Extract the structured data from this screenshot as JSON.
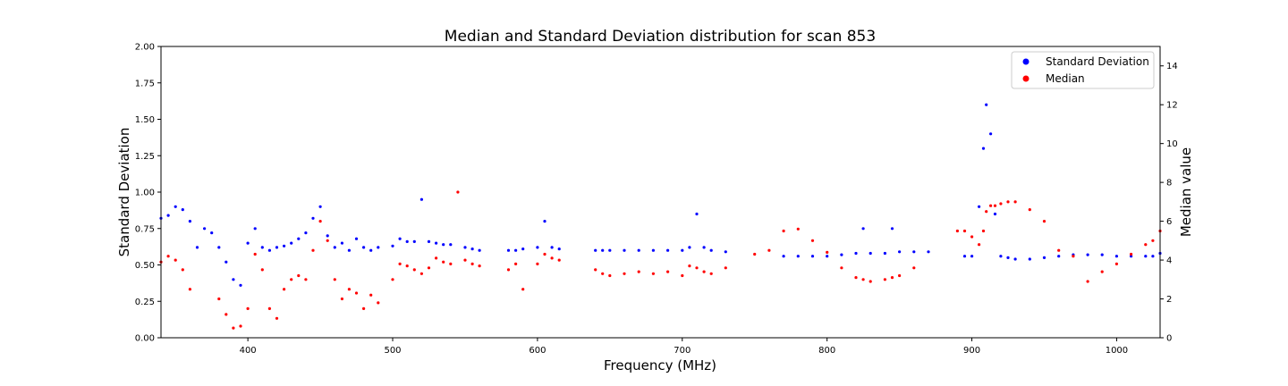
{
  "chart_data": {
    "type": "scatter",
    "title": "Median and Standard Deviation distribution for scan 853",
    "xlabel": "Frequency (MHz)",
    "ylabel_left": "Standard Deviation",
    "ylabel_right": "Median value",
    "xlim": [
      340,
      1030
    ],
    "ylim_left": [
      0,
      2.0
    ],
    "ylim_right": [
      0,
      15
    ],
    "x_ticks": [
      "400",
      "500",
      "600",
      "700",
      "800",
      "900",
      "1000"
    ],
    "y_left_ticks": [
      "0.00",
      "0.25",
      "0.50",
      "0.75",
      "1.00",
      "1.25",
      "1.50",
      "1.75",
      "2.00"
    ],
    "y_right_ticks": [
      "0",
      "2",
      "4",
      "6",
      "8",
      "10",
      "12",
      "14"
    ],
    "grid": false,
    "legend_position": "top-right",
    "series": [
      {
        "name": "Standard Deviation",
        "color": "#0000ff",
        "axis": "left",
        "x": [
          340,
          345,
          350,
          355,
          360,
          365,
          370,
          375,
          380,
          385,
          390,
          395,
          400,
          405,
          410,
          415,
          420,
          425,
          430,
          435,
          440,
          445,
          450,
          455,
          460,
          465,
          470,
          475,
          480,
          485,
          490,
          495,
          500,
          505,
          510,
          515,
          520,
          525,
          530,
          535,
          540,
          545,
          550,
          555,
          560,
          565,
          570,
          575,
          580,
          585,
          590,
          595,
          600,
          605,
          610,
          615,
          620,
          625,
          630,
          635,
          640,
          645,
          650,
          660,
          670,
          680,
          690,
          700,
          705,
          710,
          715,
          720,
          730,
          740,
          750,
          760,
          770,
          780,
          790,
          800,
          810,
          820,
          825,
          830,
          840,
          845,
          850,
          860,
          870,
          880,
          890,
          895,
          900,
          905,
          908,
          910,
          913,
          916,
          920,
          925,
          930,
          940,
          950,
          960,
          970,
          980,
          990,
          1000,
          1010,
          1020,
          1025,
          1030
        ],
        "values": [
          0.82,
          0.84,
          0.9,
          0.88,
          0.8,
          0.62,
          0.75,
          0.72,
          0.62,
          0.52,
          0.4,
          0.36,
          0.65,
          0.75,
          0.62,
          0.6,
          0.62,
          0.63,
          0.65,
          0.68,
          0.72,
          0.82,
          0.9,
          0.7,
          0.62,
          0.65,
          0.6,
          0.68,
          0.62,
          0.6,
          0.62,
          null,
          0.63,
          0.68,
          0.66,
          0.66,
          0.95,
          0.66,
          0.65,
          0.64,
          0.64,
          null,
          0.62,
          0.61,
          0.6,
          null,
          null,
          null,
          0.6,
          0.6,
          0.61,
          null,
          0.62,
          0.8,
          0.62,
          0.61,
          null,
          null,
          null,
          null,
          0.6,
          0.6,
          0.6,
          0.6,
          0.6,
          0.6,
          0.6,
          0.6,
          0.62,
          0.85,
          0.62,
          0.6,
          0.59,
          null,
          null,
          null,
          0.56,
          0.56,
          0.56,
          0.56,
          0.57,
          0.58,
          0.75,
          0.58,
          0.58,
          0.75,
          0.59,
          0.59,
          0.59,
          null,
          null,
          0.56,
          0.56,
          0.9,
          1.3,
          1.6,
          1.4,
          0.85,
          0.56,
          0.55,
          0.54,
          0.54,
          0.55,
          0.56,
          0.57,
          0.57,
          0.57,
          0.56,
          0.56,
          0.56,
          0.56,
          0.58
        ]
      },
      {
        "name": "Median",
        "color": "#ff0000",
        "axis": "right",
        "x": [
          340,
          345,
          350,
          355,
          360,
          365,
          370,
          375,
          380,
          385,
          390,
          395,
          400,
          405,
          410,
          415,
          420,
          425,
          430,
          435,
          440,
          445,
          450,
          455,
          460,
          465,
          470,
          475,
          480,
          485,
          490,
          495,
          500,
          505,
          510,
          515,
          520,
          525,
          530,
          535,
          540,
          545,
          550,
          555,
          560,
          565,
          570,
          575,
          580,
          585,
          590,
          595,
          600,
          605,
          610,
          615,
          620,
          625,
          630,
          635,
          640,
          645,
          650,
          660,
          670,
          680,
          690,
          700,
          705,
          710,
          715,
          720,
          730,
          740,
          750,
          760,
          770,
          780,
          790,
          800,
          810,
          820,
          825,
          830,
          840,
          845,
          850,
          860,
          870,
          880,
          890,
          895,
          900,
          905,
          908,
          910,
          913,
          916,
          920,
          925,
          930,
          940,
          950,
          960,
          970,
          980,
          990,
          1000,
          1010,
          1020,
          1025,
          1030
        ],
        "values": [
          3.9,
          4.2,
          4.0,
          3.5,
          2.5,
          null,
          null,
          null,
          2.0,
          1.2,
          0.5,
          0.6,
          1.5,
          4.3,
          3.5,
          1.5,
          1.0,
          2.5,
          3.0,
          3.2,
          3.0,
          4.5,
          6.0,
          5.0,
          3.0,
          2.0,
          2.5,
          2.3,
          1.5,
          2.2,
          1.8,
          null,
          3.0,
          3.8,
          3.7,
          3.5,
          3.3,
          3.6,
          4.1,
          3.9,
          3.8,
          7.5,
          4.0,
          3.8,
          3.7,
          null,
          null,
          null,
          3.5,
          3.8,
          2.5,
          null,
          3.8,
          4.3,
          4.1,
          4.0,
          null,
          null,
          null,
          null,
          3.5,
          3.3,
          3.2,
          3.3,
          3.4,
          3.3,
          3.4,
          3.2,
          3.7,
          3.6,
          3.4,
          3.3,
          3.6,
          null,
          4.3,
          4.5,
          5.5,
          5.6,
          5.0,
          4.4,
          3.6,
          3.1,
          3.0,
          2.9,
          3.0,
          3.1,
          3.2,
          3.6,
          null,
          null,
          5.5,
          5.5,
          5.2,
          4.8,
          5.5,
          6.5,
          6.8,
          6.8,
          6.9,
          7.0,
          7.0,
          6.6,
          6.0,
          4.5,
          4.2,
          2.9,
          3.4,
          3.8,
          4.3,
          4.8,
          5.0,
          5.5
        ]
      }
    ]
  }
}
